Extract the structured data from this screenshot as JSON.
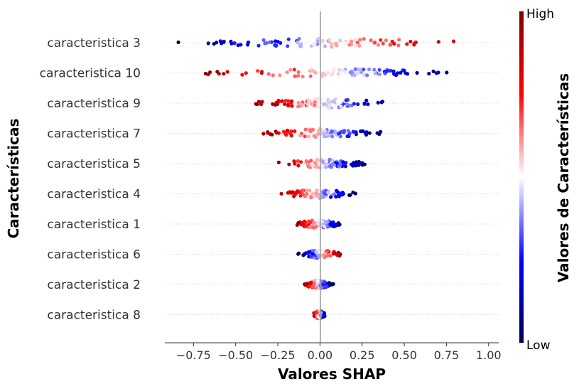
{
  "chart_data": {
    "type": "scatter",
    "subtype": "shap-beeswarm",
    "xlabel": "Valores SHAP",
    "ylabel": "Características",
    "colorbar_label": "Valores de Características",
    "colorbar_high": "High",
    "colorbar_low": "Low",
    "xlim": [
      -0.92,
      1.06
    ],
    "x_ticks": [
      -0.75,
      -0.5,
      -0.25,
      0.0,
      0.25,
      0.5,
      0.75,
      1.0
    ],
    "x_tick_labels": [
      "−0.75",
      "−0.50",
      "−0.25",
      "0.00",
      "0.25",
      "0.50",
      "0.75",
      "1.00"
    ],
    "features": [
      {
        "name": "caracteristica 3",
        "min": -0.85,
        "max": 0.97,
        "corr": "positive",
        "lowNeg": 0.08
      },
      {
        "name": "caracteristica 10",
        "min": -0.72,
        "max": 0.87,
        "corr": "negative",
        "lowNeg": 0.0
      },
      {
        "name": "caracteristica 9",
        "min": -0.4,
        "max": 0.47,
        "corr": "negative",
        "lowNeg": 0.0
      },
      {
        "name": "caracteristica 7",
        "min": -0.37,
        "max": 0.37,
        "corr": "negative",
        "lowNeg": 0.0
      },
      {
        "name": "caracteristica 5",
        "min": -0.25,
        "max": 0.27,
        "corr": "negative",
        "lowNeg": 0.0
      },
      {
        "name": "caracteristica 4",
        "min": -0.25,
        "max": 0.22,
        "corr": "negative",
        "lowNeg": 0.0
      },
      {
        "name": "caracteristica 1",
        "min": -0.15,
        "max": 0.14,
        "corr": "negative",
        "lowNeg": 0.0
      },
      {
        "name": "caracteristica 6",
        "min": -0.13,
        "max": 0.13,
        "corr": "positive",
        "lowNeg": 0.0
      },
      {
        "name": "caracteristica 2",
        "min": -0.1,
        "max": 0.08,
        "corr": "negative",
        "lowNeg": 0.0
      },
      {
        "name": "caracteristica 8",
        "min": -0.04,
        "max": 0.03,
        "corr": "negative",
        "lowNeg": 0.0
      }
    ],
    "colormap": [
      "#00004c",
      "#0000ff",
      "#ffffff",
      "#ff0000",
      "#7f0000"
    ],
    "grid": false
  }
}
